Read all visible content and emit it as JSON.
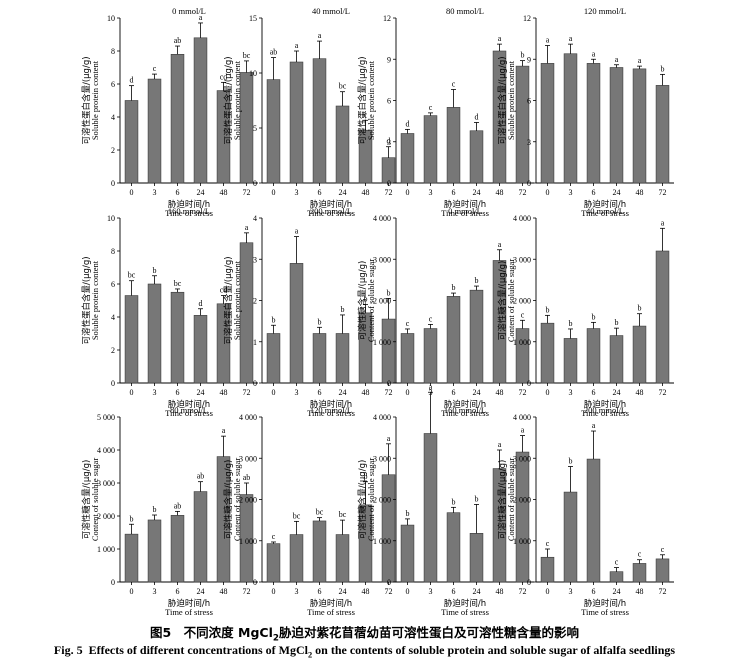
{
  "axis_labels": {
    "x_cn": "胁迫时间/h",
    "x_en": "Time of stress",
    "protein_y_cn": "可溶性蛋白含量/(μg/g)",
    "protein_y_en": "Soluble protein content",
    "sugar_y_cn": "可溶性糖含量/(μg/g)",
    "sugar_y_en": "Content of soluble sugar"
  },
  "caption": {
    "cn_prefix": "图5　不同浓度 MgCl",
    "cn_sub": "2",
    "cn_suffix": "胁迫对紫花苜蓿幼苗可溶性蛋白及可溶性糖含量的影响",
    "en_fig": "Fig. 5",
    "en_prefix": "Effects of different concentrations of MgCl",
    "en_sub": "2",
    "en_suffix": " on the contents of soluble protein and soluble sugar of alfalfa seedlings"
  },
  "chart_data": [
    {
      "type": "bar",
      "measure": "protein",
      "title": "0 mmol/L",
      "categories": [
        "0",
        "3",
        "6",
        "24",
        "48",
        "72"
      ],
      "values": [
        5.0,
        6.3,
        7.8,
        8.8,
        5.6,
        6.7
      ],
      "errors": [
        0.9,
        0.3,
        0.5,
        0.9,
        0.5,
        0.7
      ],
      "letters": [
        "d",
        "c",
        "ab",
        "a",
        "cd",
        "bc"
      ],
      "ylim": [
        0,
        10
      ],
      "yticks": [
        "0",
        "2",
        "4",
        "6",
        "8",
        "10"
      ]
    },
    {
      "type": "bar",
      "measure": "protein",
      "title": "40 mmol/L",
      "categories": [
        "0",
        "3",
        "6",
        "24",
        "48",
        "72"
      ],
      "values": [
        9.4,
        11.0,
        11.3,
        7.0,
        4.8,
        2.3
      ],
      "errors": [
        2.0,
        1.0,
        1.6,
        1.3,
        0.9,
        1.0
      ],
      "letters": [
        "ab",
        "a",
        "a",
        "bc",
        "c",
        "d"
      ],
      "ylim": [
        0,
        15
      ],
      "yticks": [
        "0",
        "5",
        "10",
        "15"
      ]
    },
    {
      "type": "bar",
      "measure": "protein",
      "title": "80 mmol/L",
      "categories": [
        "0",
        "3",
        "6",
        "24",
        "48",
        "72"
      ],
      "values": [
        3.6,
        4.9,
        5.5,
        3.8,
        9.6,
        8.5
      ],
      "errors": [
        0.3,
        0.2,
        1.3,
        0.6,
        0.5,
        0.4
      ],
      "letters": [
        "d",
        "c",
        "c",
        "d",
        "a",
        "b"
      ],
      "ylim": [
        0,
        12
      ],
      "yticks": [
        "0",
        "3",
        "6",
        "9",
        "12"
      ]
    },
    {
      "type": "bar",
      "measure": "protein",
      "title": "120 mmol/L",
      "categories": [
        "0",
        "3",
        "6",
        "24",
        "48",
        "72"
      ],
      "values": [
        8.7,
        9.4,
        8.7,
        8.4,
        8.3,
        7.1
      ],
      "errors": [
        1.3,
        0.7,
        0.3,
        0.2,
        0.2,
        0.8
      ],
      "letters": [
        "a",
        "a",
        "a",
        "a",
        "a",
        "b"
      ],
      "ylim": [
        0,
        12
      ],
      "yticks": [
        "0",
        "3",
        "6",
        "9",
        "12"
      ]
    },
    {
      "type": "bar",
      "measure": "protein",
      "title": "160 mmol/L",
      "categories": [
        "0",
        "3",
        "6",
        "24",
        "48",
        "72"
      ],
      "values": [
        5.3,
        6.0,
        5.5,
        4.1,
        4.8,
        8.5
      ],
      "errors": [
        0.9,
        0.5,
        0.2,
        0.4,
        0.5,
        0.6
      ],
      "letters": [
        "bc",
        "b",
        "bc",
        "d",
        "cd",
        "a"
      ],
      "ylim": [
        0,
        10
      ],
      "yticks": [
        "0",
        "2",
        "4",
        "6",
        "8",
        "10"
      ]
    },
    {
      "type": "bar",
      "measure": "protein",
      "title": "200 mmol/L",
      "categories": [
        "0",
        "3",
        "6",
        "24",
        "48",
        "72"
      ],
      "values": [
        1.2,
        2.9,
        1.2,
        1.2,
        1.7,
        1.55
      ],
      "errors": [
        0.2,
        0.65,
        0.15,
        0.45,
        0.2,
        0.5
      ],
      "letters": [
        "b",
        "a",
        "b",
        "b",
        "b",
        "b"
      ],
      "ylim": [
        0,
        4
      ],
      "yticks": [
        "0",
        "1",
        "2",
        "3",
        "4"
      ]
    },
    {
      "type": "bar",
      "measure": "sugar",
      "title": "0 mmol/L",
      "categories": [
        "0",
        "3",
        "6",
        "24",
        "48",
        "72"
      ],
      "values": [
        1200,
        1320,
        2100,
        2250,
        2970,
        1320
      ],
      "errors": [
        110,
        100,
        80,
        100,
        260,
        200
      ],
      "letters": [
        "c",
        "c",
        "b",
        "b",
        "a",
        "c"
      ],
      "ylim": [
        0,
        4000
      ],
      "yticks": [
        "0",
        "1 000",
        "2 000",
        "3 000",
        "4 000"
      ]
    },
    {
      "type": "bar",
      "measure": "sugar",
      "title": "40 mmol/L",
      "categories": [
        "0",
        "3",
        "6",
        "24",
        "48",
        "72"
      ],
      "values": [
        1450,
        1080,
        1320,
        1150,
        1380,
        3200
      ],
      "errors": [
        190,
        230,
        150,
        180,
        300,
        550
      ],
      "letters": [
        "b",
        "b",
        "b",
        "b",
        "b",
        "a"
      ],
      "ylim": [
        0,
        4000
      ],
      "yticks": [
        "0",
        "1 000",
        "2 000",
        "3 000",
        "4 000"
      ]
    },
    {
      "type": "bar",
      "measure": "sugar",
      "title": "80 mmol/L",
      "categories": [
        "0",
        "3",
        "6",
        "24",
        "48",
        "72"
      ],
      "values": [
        1450,
        1880,
        2020,
        2740,
        3800,
        2650
      ],
      "errors": [
        300,
        150,
        120,
        300,
        620,
        350
      ],
      "letters": [
        "b",
        "b",
        "ab",
        "ab",
        "a",
        "ab"
      ],
      "ylim": [
        0,
        5000
      ],
      "yticks": [
        "0",
        "1 000",
        "2 000",
        "3 000",
        "4 000",
        "5 000"
      ]
    },
    {
      "type": "bar",
      "measure": "sugar",
      "title": "120 mmol/L",
      "categories": [
        "0",
        "3",
        "6",
        "24",
        "48",
        "72"
      ],
      "values": [
        930,
        1150,
        1480,
        1150,
        1870,
        2600
      ],
      "errors": [
        40,
        320,
        80,
        350,
        560,
        750
      ],
      "letters": [
        "c",
        "bc",
        "bc",
        "bc",
        "b",
        "a"
      ],
      "ylim": [
        0,
        4000
      ],
      "yticks": [
        "0",
        "1 000",
        "2 000",
        "3 000",
        "4 000"
      ]
    },
    {
      "type": "bar",
      "measure": "sugar",
      "title": "160 mmol/L",
      "categories": [
        "0",
        "3",
        "6",
        "24",
        "48",
        "72"
      ],
      "values": [
        1380,
        3600,
        1680,
        1180,
        2750,
        3150
      ],
      "errors": [
        150,
        1000,
        130,
        700,
        450,
        400
      ],
      "letters": [
        "b",
        "a",
        "b",
        "b",
        "a",
        "a"
      ],
      "ylim": [
        0,
        4000
      ],
      "yticks": [
        "0",
        "1 000",
        "2 000",
        "3 000",
        "4 000"
      ]
    },
    {
      "type": "bar",
      "measure": "sugar",
      "title": "200 mmol/L",
      "categories": [
        "0",
        "3",
        "6",
        "24",
        "48",
        "72"
      ],
      "values": [
        600,
        2180,
        2980,
        250,
        450,
        560
      ],
      "errors": [
        200,
        620,
        680,
        100,
        90,
        100
      ],
      "letters": [
        "c",
        "b",
        "a",
        "c",
        "c",
        "c"
      ],
      "ylim": [
        0,
        4000
      ],
      "yticks": [
        "0",
        "1 000",
        "2 000",
        "3 000",
        "4 000"
      ]
    }
  ]
}
